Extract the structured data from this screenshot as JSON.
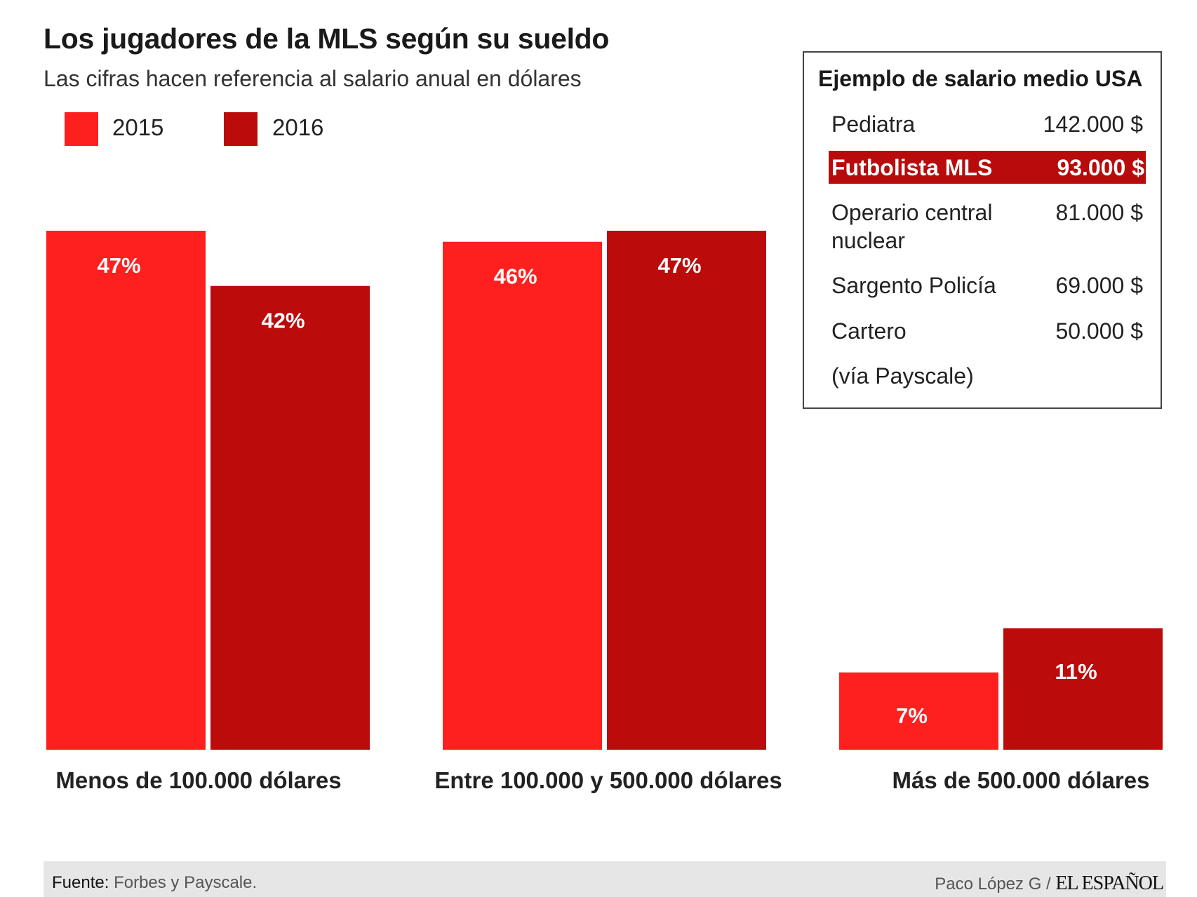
{
  "title": "Los jugadores de la MLS según su sueldo",
  "subtitle": "Las cifras hacen referencia al salario anual en dólares",
  "colors": {
    "2015": "#fd201f",
    "2016": "#bb0b0b"
  },
  "chart_data": {
    "type": "bar",
    "title": "Los jugadores de la MLS según su sueldo",
    "subtitle": "Las cifras hacen referencia al salario anual en dólares",
    "categories": [
      "Menos de 100.000 dólares",
      "Entre 100.000 y 500.000 dólares",
      "Más de 500.000 dólares"
    ],
    "series": [
      {
        "name": "2015",
        "values": [
          47,
          46,
          7
        ],
        "labels": [
          "47%",
          "46%",
          "7%"
        ]
      },
      {
        "name": "2016",
        "values": [
          42,
          47,
          11
        ],
        "labels": [
          "42%",
          "47%",
          "11%"
        ]
      }
    ],
    "unit": "%",
    "ylim": [
      0,
      47
    ],
    "grid": false,
    "legend": "top-left"
  },
  "sidebox": {
    "title": "Ejemplo de salario medio USA",
    "rows": [
      {
        "name": "Pediatra",
        "value": "142.000 $"
      },
      {
        "name": "Futbolista MLS",
        "value": "93.000 $",
        "highlight": true
      },
      {
        "name": "Operario central nuclear",
        "value": "81.000 $"
      },
      {
        "name": "Sargento Policía",
        "value": "69.000 $"
      },
      {
        "name": "Cartero",
        "value": "50.000 $"
      }
    ],
    "note": "(vía Payscale)"
  },
  "footer": {
    "source_label": "Fuente:",
    "source": "Forbes y Payscale.",
    "credit": "Paco López G /",
    "logo": "EL ESPAÑOL"
  }
}
